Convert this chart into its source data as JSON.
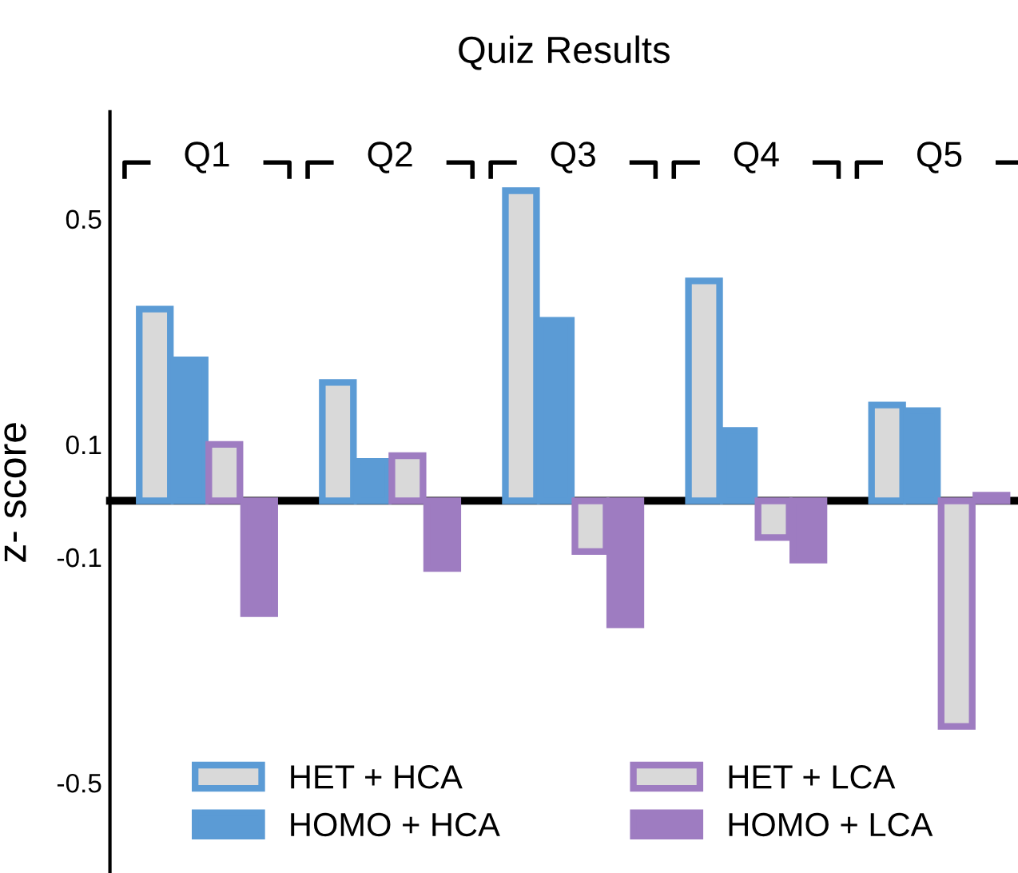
{
  "chart_data": {
    "type": "bar",
    "title": "Quiz Results",
    "ylabel": "z- score",
    "categories": [
      "Q1",
      "Q2",
      "Q3",
      "Q4",
      "Q5"
    ],
    "series": [
      {
        "name": "HET + HCA",
        "color": "#5b9bd5",
        "colors": [
          "#d9d9d9",
          "#d9d9d9",
          "#d9d9d9",
          "#d9d9d9",
          "#d9d9d9"
        ],
        "values": [
          0.34,
          0.21,
          0.55,
          0.39,
          0.17
        ]
      },
      {
        "name": "HOMO + HCA",
        "color": "#5b9bd5",
        "values": [
          0.25,
          0.07,
          0.32,
          0.125,
          0.16
        ]
      },
      {
        "name": "HET + LCA",
        "color": "#9e7cc1",
        "colors": [
          "#d9d9d9",
          "#d9d9d9",
          "#d9d9d9",
          "#d9d9d9",
          "#d9d9d9"
        ],
        "values": [
          0.1,
          0.08,
          -0.09,
          -0.065,
          -0.4
        ]
      },
      {
        "name": "HOMO + LCA",
        "color": "#9e7cc1",
        "values": [
          -0.2,
          -0.12,
          -0.22,
          -0.105,
          0.01
        ]
      }
    ],
    "ylim": [
      -0.66,
      0.69
    ],
    "yticks": [
      0.5,
      0.1,
      -0.1,
      -0.5
    ],
    "grid": false,
    "legend": "bottom"
  }
}
